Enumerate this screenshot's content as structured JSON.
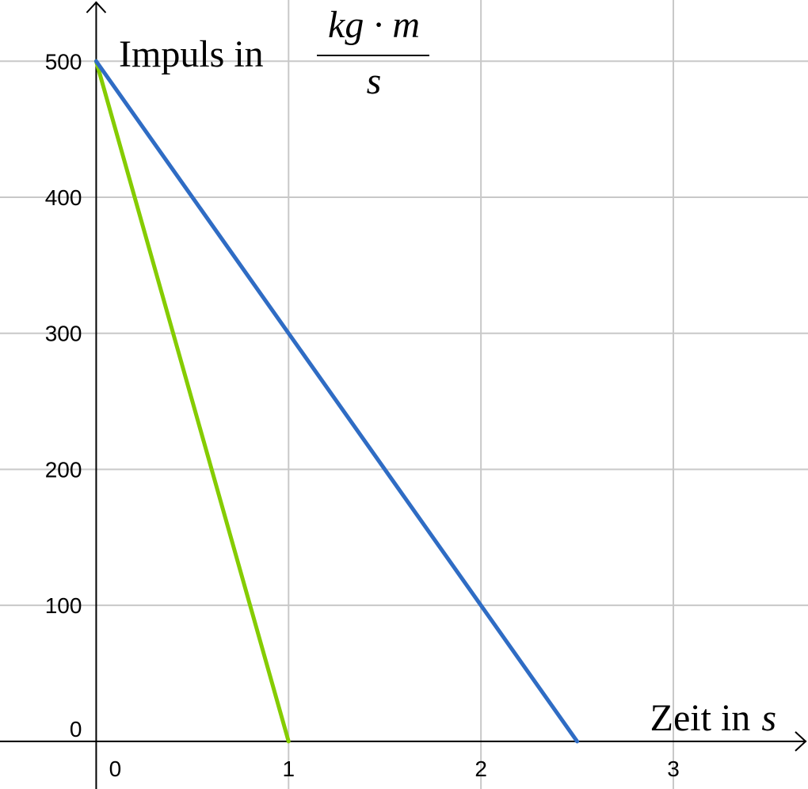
{
  "chart_data": {
    "type": "line",
    "title": "",
    "ylabel": {
      "text": "Impuls in",
      "numerator": "kg · m",
      "denominator": "s"
    },
    "xlabel": {
      "text": "Zeit in",
      "unit": "s"
    },
    "xlim": [
      -0.5,
      3.7
    ],
    "ylim": [
      -35,
      545
    ],
    "x_ticks": [
      0,
      1,
      2,
      3
    ],
    "x_tick_labels": [
      "0",
      "1",
      "2",
      "3"
    ],
    "y_ticks": [
      0,
      100,
      200,
      300,
      400,
      500
    ],
    "y_tick_labels": [
      "0",
      "100",
      "200",
      "300",
      "400",
      "500"
    ],
    "grid": true,
    "series": [
      {
        "color": "#85cc00",
        "points": [
          [
            0,
            500
          ],
          [
            1,
            0
          ]
        ]
      },
      {
        "color": "#2f6cc4",
        "points": [
          [
            0,
            500
          ],
          [
            2.5,
            0
          ]
        ]
      }
    ]
  }
}
